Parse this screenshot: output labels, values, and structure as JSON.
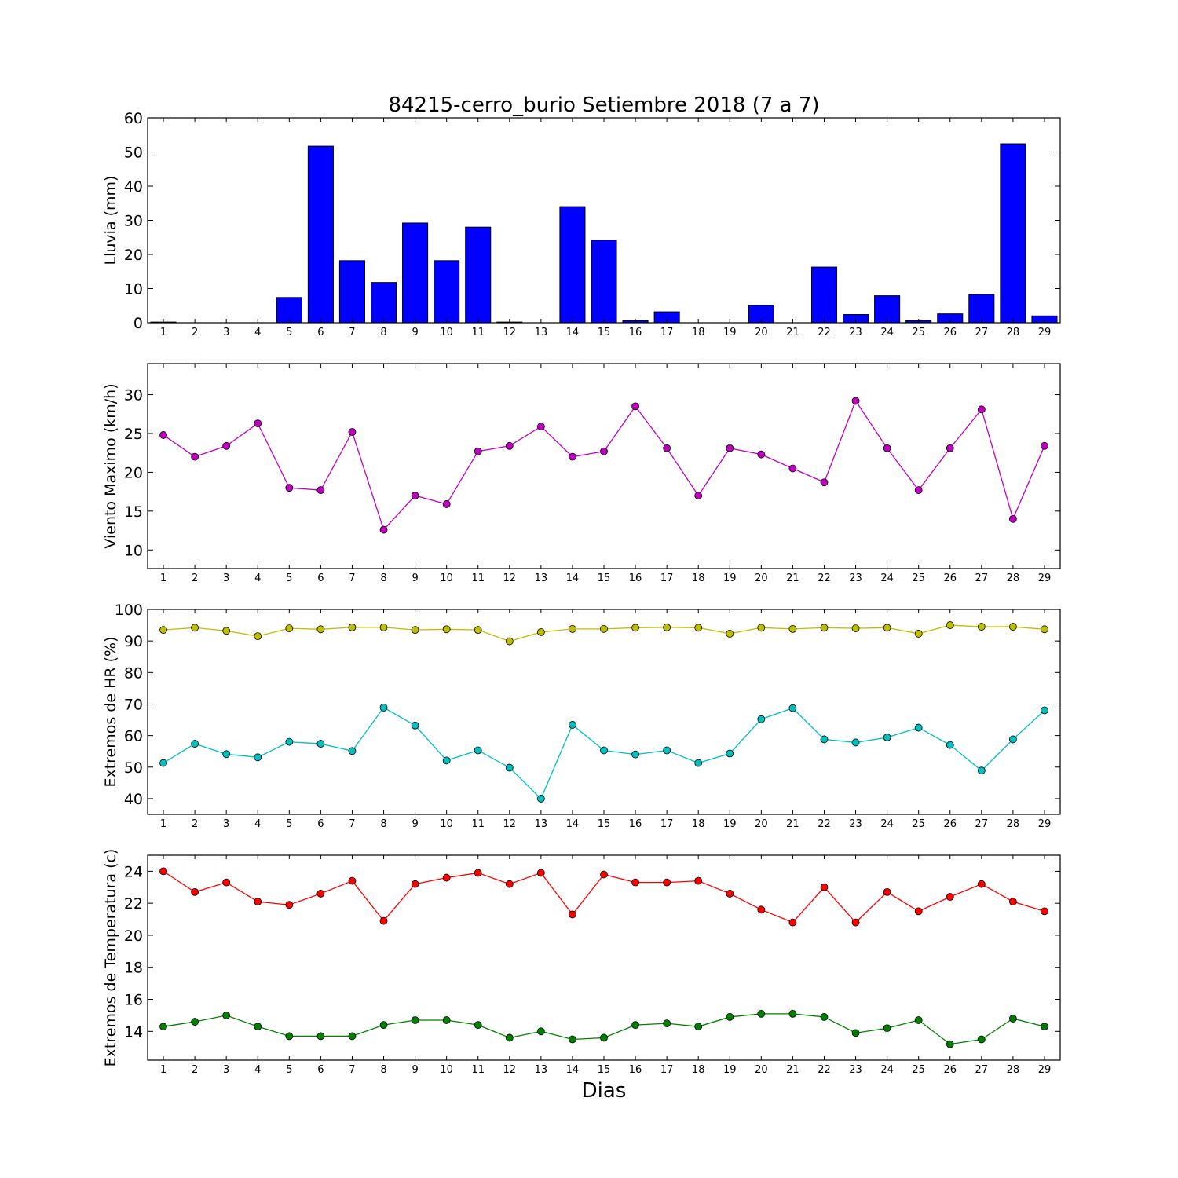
{
  "figure": {
    "title": "84215-cerro_burio Setiembre 2018  (7 a 7)",
    "xlabel": "Dias"
  },
  "chart_data": [
    {
      "type": "bar",
      "ylabel": "Lluvia (mm)",
      "categories": [
        "1",
        "2",
        "3",
        "4",
        "5",
        "6",
        "7",
        "8",
        "9",
        "10",
        "11",
        "12",
        "13",
        "14",
        "15",
        "16",
        "17",
        "18",
        "19",
        "20",
        "21",
        "22",
        "23",
        "24",
        "25",
        "26",
        "27",
        "28",
        "29"
      ],
      "ylim": [
        0,
        60
      ],
      "yticks": [
        0,
        10,
        20,
        30,
        40,
        50,
        60
      ],
      "series": [
        {
          "values": [
            0.2,
            0,
            0,
            0,
            7.4,
            51.7,
            18.2,
            11.8,
            29.2,
            18.2,
            28.0,
            0.2,
            0,
            34.0,
            24.2,
            0.6,
            3.2,
            0,
            0,
            5.1,
            0,
            16.3,
            2.4,
            7.9,
            0.6,
            2.6,
            8.3,
            52.4,
            2.0
          ],
          "color": "#0000ff"
        }
      ]
    },
    {
      "type": "line",
      "ylabel": "Viento Maximo (km/h)",
      "categories": [
        "1",
        "2",
        "3",
        "4",
        "5",
        "6",
        "7",
        "8",
        "9",
        "10",
        "11",
        "12",
        "13",
        "14",
        "15",
        "16",
        "17",
        "18",
        "19",
        "20",
        "21",
        "22",
        "23",
        "24",
        "25",
        "26",
        "27",
        "28",
        "29"
      ],
      "ylim": [
        7.6,
        34
      ],
      "yticks": [
        10,
        15,
        20,
        25,
        30
      ],
      "series": [
        {
          "values": [
            24.8,
            22.0,
            23.4,
            26.3,
            18.0,
            17.7,
            25.2,
            12.6,
            17.0,
            15.9,
            22.7,
            23.4,
            25.9,
            22.0,
            22.7,
            28.5,
            23.1,
            17.0,
            23.1,
            22.3,
            20.5,
            18.7,
            29.2,
            23.1,
            17.7,
            23.1,
            28.1,
            14.0,
            23.4
          ],
          "color": "#bf00bf"
        }
      ]
    },
    {
      "type": "line",
      "ylabel": "Extremos de HR (%)",
      "categories": [
        "1",
        "2",
        "3",
        "4",
        "5",
        "6",
        "7",
        "8",
        "9",
        "10",
        "11",
        "12",
        "13",
        "14",
        "15",
        "16",
        "17",
        "18",
        "19",
        "20",
        "21",
        "22",
        "23",
        "24",
        "25",
        "26",
        "27",
        "28",
        "29"
      ],
      "ylim": [
        35,
        100
      ],
      "yticks": [
        40,
        50,
        60,
        70,
        80,
        90,
        100
      ],
      "series": [
        {
          "values": [
            93.5,
            94.2,
            93.2,
            91.5,
            94.0,
            93.7,
            94.3,
            94.3,
            93.5,
            93.7,
            93.5,
            89.9,
            92.8,
            93.8,
            93.8,
            94.2,
            94.3,
            94.2,
            92.3,
            94.2,
            93.8,
            94.2,
            94.0,
            94.2,
            92.3,
            95.0,
            94.5,
            94.5,
            93.7
          ],
          "color": "#bfbf00"
        },
        {
          "values": [
            51.3,
            57.4,
            54.1,
            53.1,
            58.0,
            57.4,
            55.1,
            68.9,
            63.2,
            52.1,
            55.3,
            49.8,
            40.0,
            63.4,
            55.3,
            54.0,
            55.3,
            51.3,
            54.3,
            65.2,
            68.7,
            58.8,
            57.8,
            59.4,
            62.5,
            57.0,
            48.9,
            58.8,
            68.0
          ],
          "color": "#00bfbf"
        }
      ]
    },
    {
      "type": "line",
      "ylabel": "Extremos de Temperatura (c)",
      "categories": [
        "1",
        "2",
        "3",
        "4",
        "5",
        "6",
        "7",
        "8",
        "9",
        "10",
        "11",
        "12",
        "13",
        "14",
        "15",
        "16",
        "17",
        "18",
        "19",
        "20",
        "21",
        "22",
        "23",
        "24",
        "25",
        "26",
        "27",
        "28",
        "29"
      ],
      "ylim": [
        12.2,
        25
      ],
      "yticks": [
        14,
        16,
        18,
        20,
        22,
        24
      ],
      "series": [
        {
          "values": [
            24.0,
            22.7,
            23.3,
            22.1,
            21.9,
            22.6,
            23.4,
            20.9,
            23.2,
            23.6,
            23.9,
            23.2,
            23.9,
            21.3,
            23.8,
            23.3,
            23.3,
            23.4,
            22.6,
            21.6,
            20.8,
            23.0,
            20.8,
            22.7,
            21.5,
            22.4,
            23.2,
            22.1,
            21.5
          ],
          "color": "#ff0000"
        },
        {
          "values": [
            14.3,
            14.6,
            15.0,
            14.3,
            13.7,
            13.7,
            13.7,
            14.4,
            14.7,
            14.7,
            14.4,
            13.6,
            14.0,
            13.5,
            13.6,
            14.4,
            14.5,
            14.3,
            14.9,
            15.1,
            15.1,
            14.9,
            13.9,
            14.2,
            14.7,
            13.2,
            13.5,
            14.8,
            14.3
          ],
          "color": "#008000"
        }
      ]
    }
  ]
}
